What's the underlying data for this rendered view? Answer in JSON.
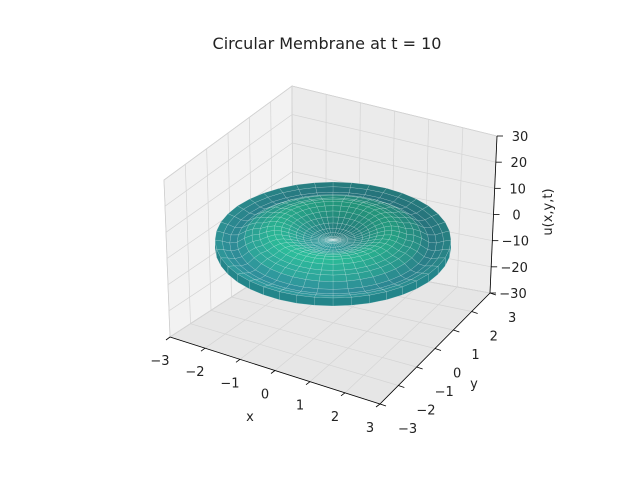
{
  "chart_data": {
    "type": "surface3d",
    "title": "Circular Membrane at t = 10",
    "xlabel": "x",
    "ylabel": "y",
    "zlabel": "u(x,y,t)",
    "x_ticks": [
      "−3",
      "−2",
      "−1",
      "0",
      "1",
      "2",
      "3"
    ],
    "y_ticks": [
      "−3",
      "−2",
      "−1",
      "0",
      "1",
      "2",
      "3"
    ],
    "z_ticks": [
      "−30",
      "−20",
      "−10",
      "0",
      "10",
      "20",
      "30"
    ],
    "xlim": [
      -3,
      3
    ],
    "ylim": [
      -3,
      3
    ],
    "zlim": [
      -30,
      30
    ],
    "colormap": "viridis",
    "surface": {
      "shape": "annular ripple (disk of radius 2)",
      "radius": 2,
      "inner_ring_height": 6,
      "outer_ring_height": -2,
      "edge_height": 0
    },
    "colors": {
      "surface_main": "#2a8a8c",
      "surface_light": "#27a88a",
      "surface_dark": "#2b6f8a",
      "pane": "#f2f2f2",
      "grid": "#d4d4d4"
    }
  }
}
